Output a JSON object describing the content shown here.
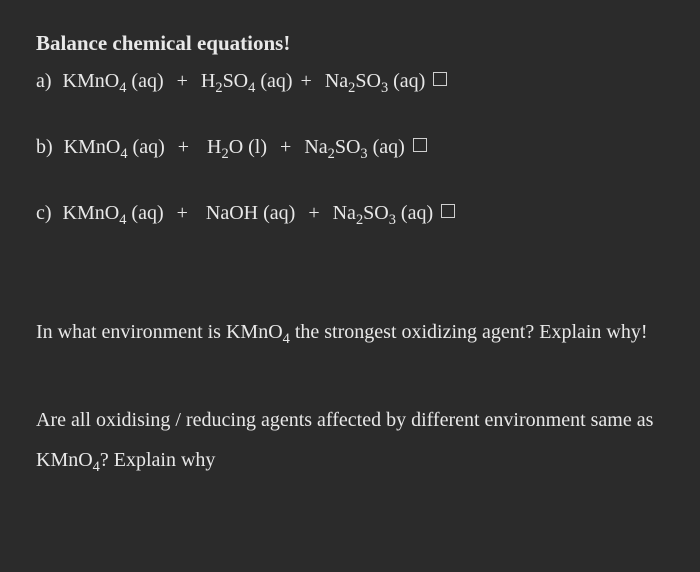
{
  "heading": "Balance chemical equations!",
  "equations": [
    {
      "label": "a)",
      "terms": [
        {
          "pre": "KMnO",
          "sub": "4",
          "state": "(aq)"
        },
        {
          "pre": "H",
          "sub": "2",
          "mid": "SO",
          "sub2": "4",
          "state": "(aq)"
        },
        {
          "pre": "Na",
          "sub": "2",
          "mid": "SO",
          "sub2": "3",
          "state": "(aq)"
        }
      ]
    },
    {
      "label": "b)",
      "terms": [
        {
          "pre": "KMnO",
          "sub": "4",
          "state": "(aq)"
        },
        {
          "pre": "H",
          "sub": "2",
          "mid": "O",
          "state": "(l)"
        },
        {
          "pre": "Na",
          "sub": "2",
          "mid": "SO",
          "sub2": "3",
          "state": "(aq)"
        }
      ]
    },
    {
      "label": "c)",
      "terms": [
        {
          "pre": "KMnO",
          "sub": "4",
          "state": "(aq)"
        },
        {
          "pre": "NaOH",
          "state": "(aq)"
        },
        {
          "pre": "Na",
          "sub": "2",
          "mid": "SO",
          "sub2": "3",
          "state": "(aq)"
        }
      ]
    }
  ],
  "question1_part1": "In what environment is KMnO",
  "question1_sub": "4",
  "question1_part2": " the strongest oxidizing agent? Explain why!",
  "question2_part1": "Are all oxidising / reducing agents affected by different environment same as KMnO",
  "question2_sub": "4",
  "question2_part2": "? Explain why"
}
